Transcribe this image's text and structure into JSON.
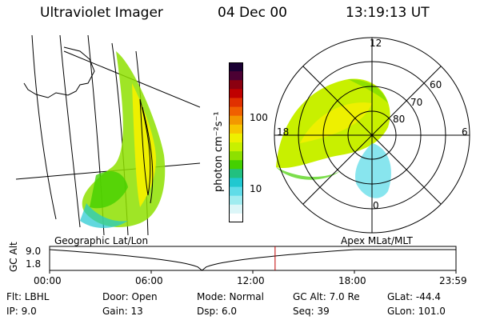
{
  "header": {
    "instrument": "Ultraviolet Imager",
    "date": "04 Dec 00",
    "time": "13:19:13 UT"
  },
  "colorbar": {
    "unit_label": "photon cm⁻²s⁻¹",
    "ticks": [
      "100",
      "10"
    ],
    "colors": [
      "#1a0033",
      "#4b0033",
      "#8b0010",
      "#c00000",
      "#e03000",
      "#f06000",
      "#f39800",
      "#f7c600",
      "#eef000",
      "#c8f000",
      "#8ee000",
      "#44d000",
      "#22c080",
      "#20c8d0",
      "#60dce8",
      "#a0ecf0",
      "#dcf6f8",
      "#ffffff"
    ]
  },
  "geo_panel": {
    "caption": "Geographic Lat/Lon"
  },
  "polar_panel": {
    "caption": "Apex MLat/MLT",
    "mlt_labels": {
      "top": "12",
      "left": "18",
      "right": "6",
      "bottom": "0"
    },
    "lat_labels": [
      "60",
      "70",
      "80"
    ]
  },
  "altitude_plot": {
    "ylabel": "GC Alt",
    "yticks": [
      "9.0",
      "1.8"
    ],
    "xticks": [
      "00:00",
      "06:00",
      "12:00",
      "18:00",
      "23:59"
    ],
    "marker_time": "13:19",
    "marker_color": "#c00000"
  },
  "status": {
    "flt": "Flt: LBHL",
    "ip": "IP:  9.0",
    "door": "Door: Open",
    "gain": "Gain: 13",
    "mode": "Mode: Normal",
    "dsp": "Dsp:    6.0",
    "gc_alt": "GC Alt: 7.0 Re",
    "seq": "Seq: 39",
    "glat": "GLat: -44.4",
    "glon": "GLon: 101.0"
  }
}
